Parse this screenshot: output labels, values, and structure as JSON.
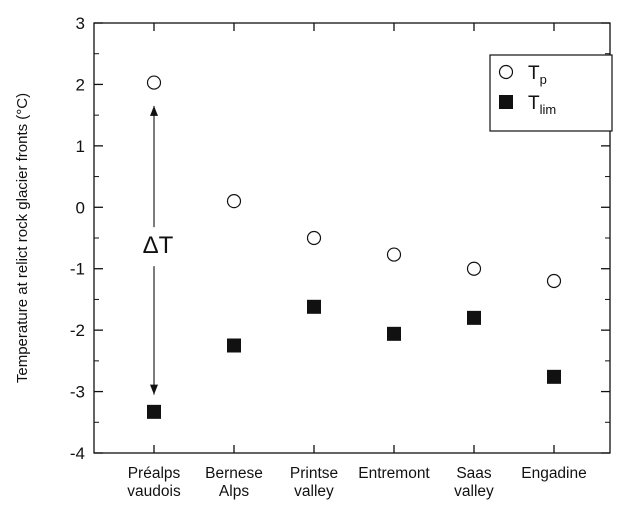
{
  "chart_data": {
    "type": "scatter",
    "ylabel": "Temperature at relict rock glacier fronts (°C)",
    "xlabel": "",
    "ylim": [
      -4,
      3
    ],
    "yticks": [
      "3",
      "2",
      "1",
      "0",
      "-1",
      "-2",
      "-3",
      "-4"
    ],
    "categories": [
      [
        "Préalps",
        "vaudois"
      ],
      [
        "Bernese",
        "Alps"
      ],
      [
        "Printse",
        "valley"
      ],
      [
        "Entremont"
      ],
      [
        "Saas",
        "valley"
      ],
      [
        "Engadine"
      ]
    ],
    "series": [
      {
        "name": "T",
        "subscript": "p",
        "marker": "open-circle",
        "values": [
          2.03,
          0.1,
          -0.5,
          -0.77,
          -1.0,
          -1.2
        ]
      },
      {
        "name": "T",
        "subscript": "lim",
        "marker": "filled-square",
        "values": [
          -3.33,
          -2.25,
          -1.62,
          -2.06,
          -1.8,
          -2.76
        ]
      }
    ],
    "legend_position": "top-right",
    "annotation": {
      "text": "ΔT",
      "arrow_category": "Préalps vaudois",
      "from": 1.65,
      "to": -3.05
    }
  },
  "colors": {
    "ink": "#111111",
    "background": "#ffffff"
  }
}
